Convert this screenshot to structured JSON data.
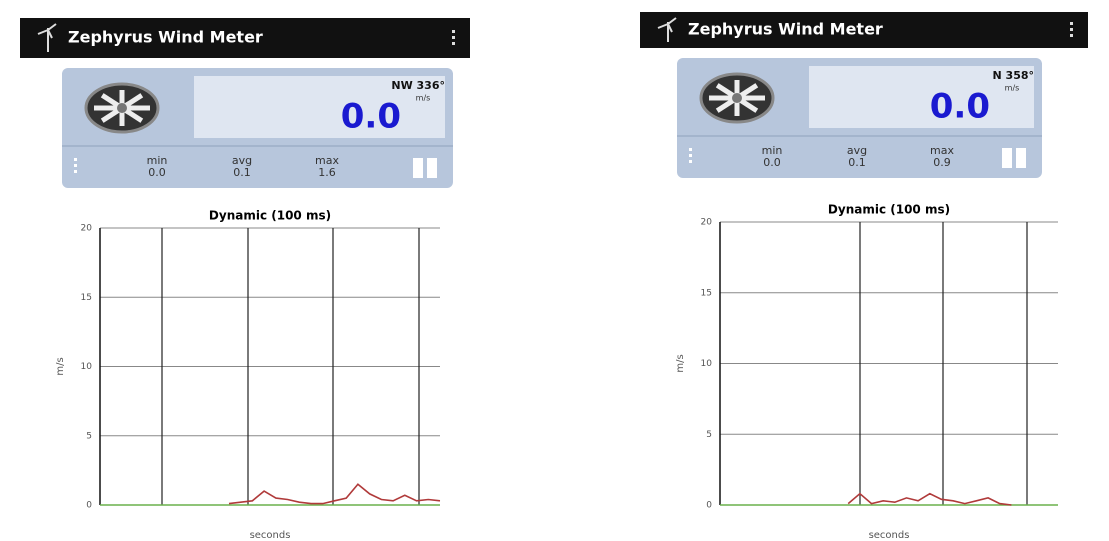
{
  "screens": [
    {
      "header": {
        "title": "Zephyrus Wind Meter"
      },
      "meter": {
        "direction": "NW 336°",
        "speed": "0.0",
        "unit": "m/s"
      },
      "stats": [
        {
          "label": "min",
          "value": "0.0"
        },
        {
          "label": "avg",
          "value": "0.1"
        },
        {
          "label": "max",
          "value": "1.6"
        }
      ],
      "chart": {
        "type": "line",
        "title": "Dynamic (100 ms)",
        "y_label": "m/s",
        "x_label": "seconds",
        "ylim": [
          0,
          20
        ],
        "yticks": [
          0,
          5,
          10,
          15,
          20
        ],
        "grid": true,
        "series": [
          {
            "color": "#6ab04c",
            "values": [
              0,
              0,
              0,
              0,
              0,
              0,
              0,
              0,
              0,
              0,
              0,
              0,
              0,
              0,
              0,
              0,
              0,
              0,
              0,
              0,
              0,
              0,
              0,
              0,
              0,
              0,
              0,
              0,
              0,
              0
            ]
          },
          {
            "color": "#b03a3a",
            "values": [
              null,
              null,
              null,
              null,
              null,
              null,
              null,
              null,
              null,
              null,
              null,
              0.1,
              0.2,
              0.3,
              1.0,
              0.5,
              0.4,
              0.2,
              0.1,
              0.1,
              0.3,
              0.5,
              1.5,
              0.8,
              0.4,
              0.3,
              0.7,
              0.3,
              0.4,
              0.3
            ]
          }
        ]
      }
    },
    {
      "header": {
        "title": "Zephyrus Wind Meter"
      },
      "meter": {
        "direction": "N 358°",
        "speed": "0.0",
        "unit": "m/s"
      },
      "stats": [
        {
          "label": "min",
          "value": "0.0"
        },
        {
          "label": "avg",
          "value": "0.1"
        },
        {
          "label": "max",
          "value": "0.9"
        }
      ],
      "chart": {
        "type": "line",
        "title": "Dynamic (100 ms)",
        "y_label": "m/s",
        "x_label": "seconds",
        "ylim": [
          0,
          20
        ],
        "yticks": [
          0,
          5,
          10,
          15,
          20
        ],
        "grid": true,
        "series": [
          {
            "color": "#6ab04c",
            "values": [
              0,
              0,
              0,
              0,
              0,
              0,
              0,
              0,
              0,
              0,
              0,
              0,
              0,
              0,
              0,
              0,
              0,
              0,
              0,
              0,
              0,
              0,
              0,
              0,
              0,
              0,
              0,
              0,
              0,
              0
            ]
          },
          {
            "color": "#b03a3a",
            "values": [
              null,
              null,
              null,
              null,
              null,
              null,
              null,
              null,
              null,
              null,
              null,
              0.1,
              0.8,
              0.1,
              0.3,
              0.2,
              0.5,
              0.3,
              0.8,
              0.4,
              0.3,
              0.1,
              0.3,
              0.5,
              0.1,
              0.0,
              null,
              null,
              null,
              null
            ]
          }
        ]
      }
    }
  ]
}
